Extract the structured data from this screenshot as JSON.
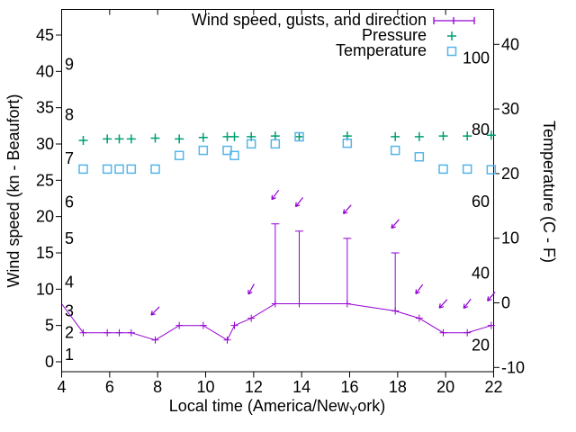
{
  "chart_data": {
    "type": "line",
    "title": "",
    "xlabel": "Local time (America/New_York)",
    "labels": {
      "xlabel_pre": "Local time (America/New",
      "xlabel_sub": "Y",
      "xlabel_post": "ork)",
      "ylabel_left": "Wind speed (kn - Beaufort)",
      "ylabel_right": "Temperature (C - F)"
    },
    "xlim": [
      4,
      22
    ],
    "ylim_kn": [
      0,
      45
    ],
    "ylim_c": [
      -10,
      40
    ],
    "grid": false,
    "legend_position": "top-right-inside",
    "x_axis": {
      "major_ticks": [
        4,
        6,
        8,
        10,
        12,
        14,
        16,
        18,
        20,
        22
      ],
      "top_ticks": [
        6,
        8,
        10,
        12,
        14,
        16,
        18,
        20
      ]
    },
    "y_left": {
      "ticks": [
        0,
        5,
        10,
        15,
        20,
        25,
        30,
        35,
        40,
        45
      ],
      "beaufort_labels": [
        {
          "label": "1",
          "kn": 1
        },
        {
          "label": "2",
          "kn": 4
        },
        {
          "label": "3",
          "kn": 7
        },
        {
          "label": "4",
          "kn": 11
        },
        {
          "label": "5",
          "kn": 17
        },
        {
          "label": "6",
          "kn": 22
        },
        {
          "label": "7",
          "kn": 28
        },
        {
          "label": "8",
          "kn": 34
        },
        {
          "label": "9",
          "kn": 41
        }
      ]
    },
    "y_right": {
      "ticks_c": [
        -10,
        0,
        10,
        20,
        30,
        40
      ],
      "fahrenheit_labels": [
        20,
        40,
        60,
        80,
        100
      ]
    },
    "legend": {
      "items": [
        {
          "label": "Wind speed, gusts, and direction",
          "marker": "errorbar-line",
          "color": "#9400d3"
        },
        {
          "label": "Pressure",
          "marker": "plus",
          "color": "#009e73"
        },
        {
          "label": "Temperature",
          "marker": "open-square",
          "color": "#56b4e9"
        }
      ]
    },
    "series": {
      "wind": {
        "name": "Wind speed, gusts, and direction",
        "color": "#9400d3",
        "unit": "kn",
        "edge_start": {
          "t": 4.0,
          "kn": 8
        },
        "points": [
          {
            "t": 4.9,
            "kn": 4
          },
          {
            "t": 5.9,
            "kn": 4
          },
          {
            "t": 6.4,
            "kn": 4
          },
          {
            "t": 6.9,
            "kn": 4
          },
          {
            "t": 7.9,
            "kn": 3
          },
          {
            "t": 8.9,
            "kn": 5
          },
          {
            "t": 9.9,
            "kn": 5
          },
          {
            "t": 10.9,
            "kn": 3
          },
          {
            "t": 11.2,
            "kn": 5
          },
          {
            "t": 11.9,
            "kn": 6
          },
          {
            "t": 12.9,
            "kn": 8,
            "gust": 19
          },
          {
            "t": 13.9,
            "kn": 8,
            "gust": 18
          },
          {
            "t": 15.9,
            "kn": 8,
            "gust": 17
          },
          {
            "t": 17.9,
            "kn": 7,
            "gust": 15
          },
          {
            "t": 18.9,
            "kn": 6
          },
          {
            "t": 19.9,
            "kn": 4
          },
          {
            "t": 20.9,
            "kn": 4
          },
          {
            "t": 21.9,
            "kn": 5
          }
        ]
      },
      "pressure": {
        "name": "Pressure",
        "color": "#009e73",
        "plotted_on": "left-axis-kn-scale",
        "points": [
          {
            "t": 4.9,
            "v": 30.5
          },
          {
            "t": 5.9,
            "v": 30.7
          },
          {
            "t": 6.4,
            "v": 30.7
          },
          {
            "t": 6.9,
            "v": 30.7
          },
          {
            "t": 7.9,
            "v": 30.8
          },
          {
            "t": 8.9,
            "v": 30.7
          },
          {
            "t": 9.9,
            "v": 30.9
          },
          {
            "t": 10.9,
            "v": 31.0
          },
          {
            "t": 11.2,
            "v": 31.0
          },
          {
            "t": 11.9,
            "v": 31.0
          },
          {
            "t": 12.9,
            "v": 31.1
          },
          {
            "t": 13.9,
            "v": 31.0
          },
          {
            "t": 15.9,
            "v": 31.1
          },
          {
            "t": 17.9,
            "v": 31.0
          },
          {
            "t": 18.9,
            "v": 31.0
          },
          {
            "t": 19.9,
            "v": 31.1
          },
          {
            "t": 20.9,
            "v": 31.1
          },
          {
            "t": 21.9,
            "v": 31.2
          }
        ]
      },
      "temperature": {
        "name": "Temperature",
        "color": "#56b4e9",
        "unit": "C",
        "points": [
          {
            "t": 4.9,
            "c": 20.7
          },
          {
            "t": 5.9,
            "c": 20.7
          },
          {
            "t": 6.4,
            "c": 20.7
          },
          {
            "t": 6.9,
            "c": 20.7
          },
          {
            "t": 7.9,
            "c": 20.7
          },
          {
            "t": 8.9,
            "c": 22.8
          },
          {
            "t": 9.9,
            "c": 23.6
          },
          {
            "t": 10.9,
            "c": 23.6
          },
          {
            "t": 11.2,
            "c": 22.8
          },
          {
            "t": 11.9,
            "c": 24.6
          },
          {
            "t": 12.9,
            "c": 24.6
          },
          {
            "t": 13.9,
            "c": 25.7
          },
          {
            "t": 15.9,
            "c": 24.7
          },
          {
            "t": 17.9,
            "c": 23.6
          },
          {
            "t": 18.9,
            "c": 22.6
          },
          {
            "t": 19.9,
            "c": 20.7
          },
          {
            "t": 20.9,
            "c": 20.7
          },
          {
            "t": 21.9,
            "c": 20.6
          }
        ]
      }
    },
    "wind_arrows": [
      {
        "t": 7.9,
        "kn": 7,
        "angle": 135
      },
      {
        "t": 11.9,
        "kn": 10,
        "angle": 119
      },
      {
        "t": 12.9,
        "kn": 23,
        "angle": 126
      },
      {
        "t": 13.9,
        "kn": 22,
        "angle": 129
      },
      {
        "t": 15.9,
        "kn": 21,
        "angle": 132
      },
      {
        "t": 17.9,
        "kn": 19,
        "angle": 131
      },
      {
        "t": 18.9,
        "kn": 10,
        "angle": 127
      },
      {
        "t": 19.9,
        "kn": 8,
        "angle": 133
      },
      {
        "t": 20.9,
        "kn": 8,
        "angle": 128
      },
      {
        "t": 21.9,
        "kn": 9,
        "angle": 131
      }
    ]
  }
}
